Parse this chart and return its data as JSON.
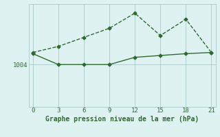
{
  "x": [
    0,
    3,
    6,
    9,
    12,
    15,
    18,
    21
  ],
  "line1_y": [
    1006.0,
    1007.0,
    1008.5,
    1010.0,
    1012.5,
    1008.8,
    1011.5,
    1006.0
  ],
  "line2_y": [
    1005.8,
    1004.0,
    1004.0,
    1004.0,
    1005.2,
    1005.5,
    1005.8,
    1006.0
  ],
  "line_color": "#2d6a2d",
  "bg_color": "#dff2f2",
  "grid_color": "#aac8c8",
  "xlabel": "Graphe pression niveau de la mer (hPa)",
  "ytick_val": 1004,
  "ytick_label": "1004",
  "ylim_min": 997,
  "ylim_max": 1014.0,
  "xlim_min": -0.5,
  "xlim_max": 21.5,
  "xticks": [
    0,
    3,
    6,
    9,
    12,
    15,
    18,
    21
  ],
  "marker": "D",
  "marker_size": 2.5,
  "line1_style": "--",
  "line2_style": "-",
  "linewidth": 1.0
}
